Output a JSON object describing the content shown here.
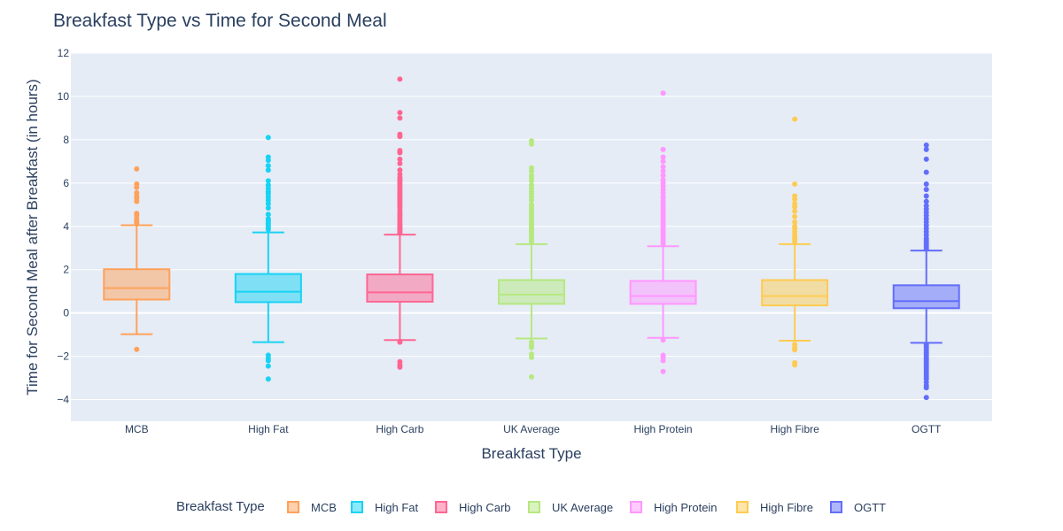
{
  "chart_data": {
    "type": "box",
    "title": "Breakfast Type vs Time for Second Meal",
    "xlabel": "Breakfast Type",
    "ylabel": "Time for Second Meal after Breakfast (in hours)",
    "ylim": [
      -5,
      12
    ],
    "yticks": [
      -4,
      -2,
      0,
      2,
      4,
      6,
      8,
      10,
      12
    ],
    "grid": true,
    "legend": {
      "title": "Breakfast Type",
      "placement": "bottom"
    },
    "categories": [
      "MCB",
      "High Fat",
      "High Carb",
      "UK Average",
      "High Protein",
      "High Fibre",
      "OGTT"
    ],
    "series": [
      {
        "name": "MCB",
        "color": "#FFA15A",
        "lowerfence": -0.98,
        "q1": 0.62,
        "median": 1.15,
        "q3": 2.02,
        "upperfence": 4.05,
        "outliers": [
          4.15,
          4.25,
          4.35,
          4.5,
          4.6,
          5.15,
          5.3,
          5.4,
          5.55,
          5.8,
          5.95,
          6.65,
          -1.68
        ]
      },
      {
        "name": "High Fat",
        "color": "#19D3F3",
        "lowerfence": -1.35,
        "q1": 0.5,
        "median": 0.98,
        "q3": 1.8,
        "upperfence": 3.72,
        "outliers": [
          3.85,
          3.95,
          4.05,
          4.15,
          4.25,
          4.35,
          4.55,
          4.85,
          5.05,
          5.2,
          5.35,
          5.5,
          5.6,
          5.75,
          5.9,
          6.1,
          6.6,
          6.8,
          7.05,
          7.2,
          8.1,
          -1.95,
          -2.1,
          -2.2,
          -2.45,
          -3.05
        ]
      },
      {
        "name": "High Carb",
        "color": "#FF6692",
        "lowerfence": -1.25,
        "q1": 0.52,
        "median": 0.95,
        "q3": 1.78,
        "upperfence": 3.62,
        "outliers": [
          3.7,
          3.78,
          3.85,
          3.92,
          4.0,
          4.1,
          4.2,
          4.3,
          4.4,
          4.5,
          4.6,
          4.72,
          4.85,
          4.95,
          5.05,
          5.15,
          5.25,
          5.35,
          5.45,
          5.55,
          5.65,
          5.75,
          5.85,
          5.95,
          6.05,
          6.15,
          6.25,
          6.4,
          6.6,
          6.9,
          7.1,
          7.4,
          7.5,
          8.15,
          8.25,
          9.0,
          9.25,
          10.8,
          -1.35,
          -2.25,
          -2.4,
          -2.5
        ]
      },
      {
        "name": "UK Average",
        "color": "#B6E880",
        "lowerfence": -1.18,
        "q1": 0.42,
        "median": 0.85,
        "q3": 1.52,
        "upperfence": 3.18,
        "outliers": [
          3.3,
          3.4,
          3.5,
          3.6,
          3.7,
          3.8,
          3.9,
          4.0,
          4.1,
          4.2,
          4.3,
          4.4,
          4.5,
          4.6,
          4.7,
          4.8,
          4.9,
          5.0,
          5.2,
          5.35,
          5.5,
          5.6,
          5.75,
          5.9,
          6.1,
          6.25,
          6.35,
          6.55,
          6.7,
          7.8,
          7.95,
          -1.35,
          -1.5,
          -1.6,
          -1.9,
          -2.05,
          -2.95
        ]
      },
      {
        "name": "High Protein",
        "color": "#FF97FF",
        "lowerfence": -1.15,
        "q1": 0.42,
        "median": 0.78,
        "q3": 1.48,
        "upperfence": 3.08,
        "outliers": [
          3.2,
          3.3,
          3.4,
          3.5,
          3.6,
          3.7,
          3.8,
          3.9,
          4.0,
          4.1,
          4.2,
          4.3,
          4.4,
          4.5,
          4.6,
          4.7,
          4.8,
          4.9,
          5.0,
          5.15,
          5.3,
          5.4,
          5.55,
          5.7,
          5.85,
          6.0,
          6.15,
          6.35,
          6.55,
          6.75,
          7.0,
          7.2,
          7.55,
          10.15,
          -1.25,
          -1.95,
          -2.05,
          -2.2,
          -2.7
        ]
      },
      {
        "name": "High Fibre",
        "color": "#FECB52",
        "lowerfence": -1.28,
        "q1": 0.35,
        "median": 0.78,
        "q3": 1.52,
        "upperfence": 3.18,
        "outliers": [
          3.3,
          3.4,
          3.5,
          3.6,
          3.75,
          3.9,
          4.0,
          4.2,
          4.45,
          4.7,
          4.9,
          5.05,
          5.25,
          5.4,
          5.95,
          8.95,
          -1.45,
          -1.6,
          -1.7,
          -2.3,
          -2.4
        ]
      },
      {
        "name": "OGTT",
        "color": "#636EFA",
        "lowerfence": -1.38,
        "q1": 0.22,
        "median": 0.55,
        "q3": 1.28,
        "upperfence": 2.88,
        "outliers": [
          2.95,
          3.05,
          3.15,
          3.25,
          3.35,
          3.45,
          3.6,
          3.75,
          3.9,
          4.05,
          4.2,
          4.35,
          4.5,
          4.65,
          4.8,
          4.95,
          5.15,
          5.4,
          5.7,
          5.95,
          6.5,
          7.1,
          7.55,
          7.75,
          -1.45,
          -1.55,
          -1.65,
          -1.75,
          -1.85,
          -1.95,
          -2.05,
          -2.15,
          -2.25,
          -2.35,
          -2.45,
          -2.55,
          -2.65,
          -2.75,
          -2.85,
          -2.95,
          -3.05,
          -3.2,
          -3.35,
          -3.45,
          -3.9
        ]
      }
    ]
  }
}
